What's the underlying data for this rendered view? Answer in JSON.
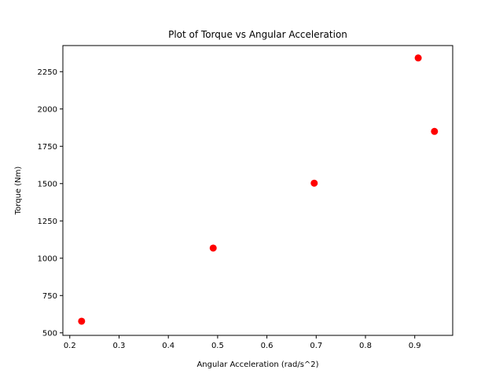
{
  "chart_data": {
    "type": "scatter",
    "title": "Plot of Torque vs Angular Acceleration",
    "xlabel": "Angular Acceleration (rad/s^2)",
    "ylabel": "Torque (Nm)",
    "xlim": [
      0.186,
      0.977
    ],
    "ylim": [
      483,
      2425
    ],
    "xticks": [
      0.2,
      0.3,
      0.4,
      0.5,
      0.6,
      0.7,
      0.8,
      0.9
    ],
    "xtick_labels": [
      "0.2",
      "0.3",
      "0.4",
      "0.5",
      "0.6",
      "0.7",
      "0.8",
      "0.9"
    ],
    "yticks": [
      500,
      750,
      1000,
      1250,
      1500,
      1750,
      2000,
      2250
    ],
    "ytick_labels": [
      "500",
      "750",
      "1000",
      "1250",
      "1500",
      "1750",
      "2000",
      "2250"
    ],
    "grid": false,
    "series": [
      {
        "color": "#ff0000",
        "marker": "circle",
        "points": [
          {
            "x": 0.224,
            "y": 578
          },
          {
            "x": 0.491,
            "y": 1068
          },
          {
            "x": 0.696,
            "y": 1503
          },
          {
            "x": 0.907,
            "y": 2342
          },
          {
            "x": 0.94,
            "y": 1850
          }
        ]
      }
    ]
  }
}
